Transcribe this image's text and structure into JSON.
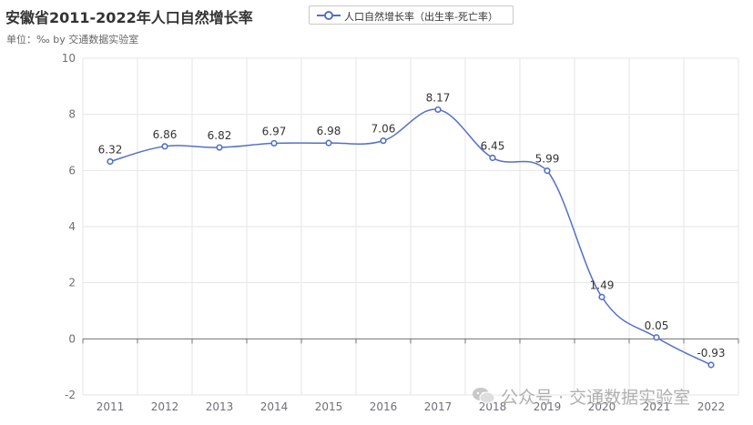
{
  "header": {
    "title": "安徽省2011-2022年人口自然增长率",
    "subtitle": "单位：‰  by 交通数据实验室"
  },
  "legend": {
    "label": "人口自然增长率（出生率-死亡率）"
  },
  "watermark": {
    "text": "公众号 · 交通数据实验室",
    "icon": "wechat-icon"
  },
  "colors": {
    "series": "#5470c6",
    "grid": "#e6e6e6",
    "axis": "#6e7079"
  },
  "chart_data": {
    "type": "line",
    "smooth": true,
    "title": "安徽省2011-2022年人口自然增长率",
    "subtitle": "单位：‰  by 交通数据实验室",
    "categories": [
      "2011",
      "2012",
      "2013",
      "2014",
      "2015",
      "2016",
      "2017",
      "2018",
      "2019",
      "2020",
      "2021",
      "2022"
    ],
    "series": [
      {
        "name": "人口自然增长率（出生率-死亡率）",
        "values": [
          6.32,
          6.86,
          6.82,
          6.97,
          6.98,
          7.06,
          8.17,
          6.45,
          5.99,
          1.49,
          0.05,
          -0.93
        ]
      }
    ],
    "yticks": [
      "-2",
      "0",
      "2",
      "4",
      "6",
      "8",
      "10"
    ],
    "ylim": [
      -2,
      10
    ],
    "grid": true,
    "legend_position": "top"
  }
}
